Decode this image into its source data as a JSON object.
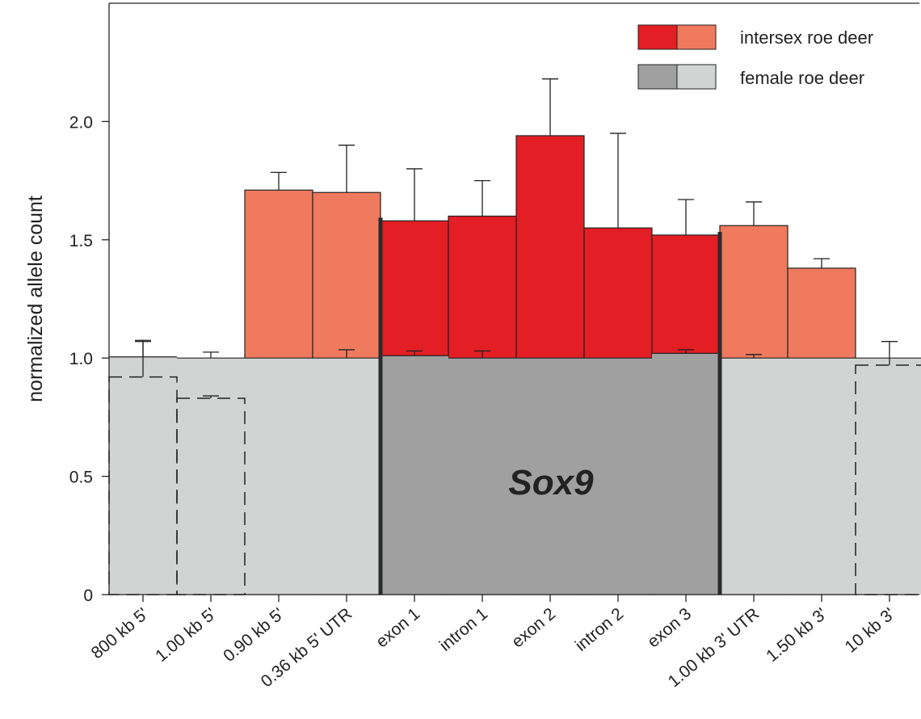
{
  "chart_data": {
    "type": "bar",
    "ylabel": "normalized allele count",
    "ylim": [
      0,
      2.5
    ],
    "yticks": [
      0,
      0.5,
      1.0,
      1.5,
      2.0
    ],
    "ytick_labels": [
      "0",
      "0.5",
      "1.0",
      "1.5",
      "2.0"
    ],
    "categories": [
      "800 kb 5'",
      "1.00 kb 5'",
      "0.90 kb 5'",
      "0.36 kb 5' UTR",
      "exon 1",
      "intron 1",
      "exon 2",
      "intron 2",
      "exon 3",
      "1.00 kb 3' UTR",
      "1.50 kb 3'",
      "10 kb 3'"
    ],
    "gene_region": {
      "label": "Sox9",
      "from_category": "exon 1",
      "to_category": "exon 3"
    },
    "series": [
      {
        "name": "intersex roe deer",
        "values": [
          0.92,
          0.83,
          1.71,
          1.7,
          1.58,
          1.6,
          1.94,
          1.55,
          1.52,
          1.56,
          1.38,
          0.97
        ],
        "error": [
          0.15,
          0.01,
          0.075,
          0.2,
          0.22,
          0.15,
          0.24,
          0.4,
          0.15,
          0.1,
          0.04,
          0.1
        ],
        "color_gene": "#e31e24",
        "color_flank": "#ef7a5e"
      },
      {
        "name": "female roe deer",
        "values": [
          1.005,
          1.0,
          1.0,
          1.0,
          1.01,
          1.0,
          1.0,
          1.0,
          1.02,
          1.0,
          1.0,
          1.0
        ],
        "error": [
          0.07,
          0.025,
          0.0,
          0.035,
          0.02,
          0.03,
          0.0,
          0.0,
          0.015,
          0.015,
          0.0,
          0.0
        ],
        "color_gene": "#a0a0a0",
        "color_flank": "#d2d3d3"
      }
    ],
    "legend_position": "top-right",
    "grid": false
  }
}
